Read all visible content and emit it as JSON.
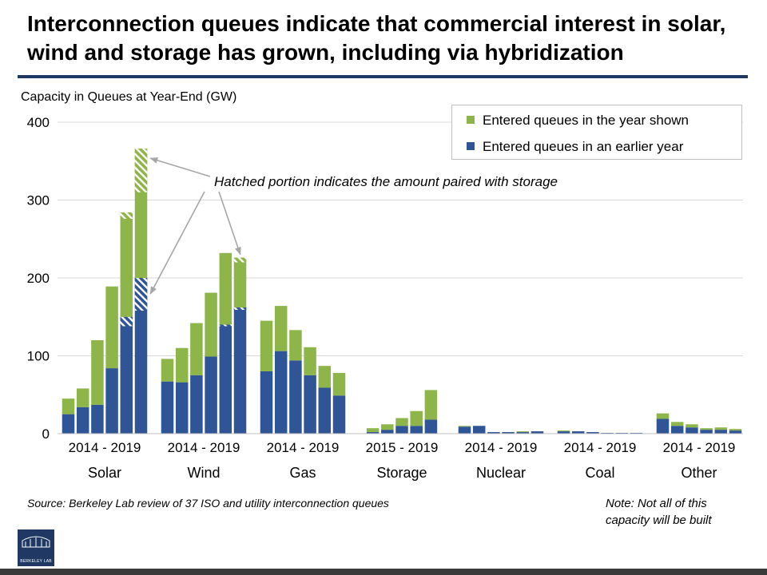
{
  "slide": {
    "title": "Interconnection queues indicate that commercial interest in solar, wind and storage has grown, including via hybridization",
    "source": "Source: Berkeley Lab review of 37 ISO and utility interconnection queues",
    "note": "Note: Not all of this capacity will be built",
    "logo_text": "BERKELEY LAB"
  },
  "colors": {
    "entered_year": "#8db54a",
    "entered_earlier": "#2f5597",
    "title_rule": "#1f3864",
    "annotation_arrow": "#a6a6a6"
  },
  "chart_data": {
    "type": "bar",
    "stacked": true,
    "ylabel": "Capacity in Queues at Year-End (GW)",
    "ylim": [
      0,
      400
    ],
    "yticks": [
      0,
      100,
      200,
      300,
      400
    ],
    "grid": true,
    "legend_position": "top-right",
    "annotation": "Hatched portion indicates the amount paired with storage",
    "groups": [
      {
        "name": "Solar",
        "range": "2014 - 2019",
        "years": [
          2014,
          2015,
          2016,
          2017,
          2018,
          2019
        ],
        "earlier": [
          25,
          34,
          37,
          84,
          150,
          200
        ],
        "entered": [
          20,
          24,
          83,
          105,
          134,
          166
        ],
        "hatched_earlier": [
          0,
          0,
          0,
          0,
          12,
          42
        ],
        "hatched_entered": [
          0,
          0,
          0,
          0,
          8,
          56
        ]
      },
      {
        "name": "Wind",
        "range": "2014 - 2019",
        "years": [
          2014,
          2015,
          2016,
          2017,
          2018,
          2019
        ],
        "earlier": [
          67,
          66,
          75,
          99,
          140,
          162
        ],
        "entered": [
          29,
          44,
          67,
          82,
          92,
          64
        ],
        "hatched_earlier": [
          0,
          0,
          0,
          0,
          2,
          3
        ],
        "hatched_entered": [
          0,
          0,
          0,
          0,
          0,
          6
        ]
      },
      {
        "name": "Gas",
        "range": "2014 - 2019",
        "years": [
          2014,
          2015,
          2016,
          2017,
          2018,
          2019
        ],
        "earlier": [
          80,
          106,
          94,
          75,
          59,
          49
        ],
        "entered": [
          65,
          58,
          39,
          36,
          28,
          29
        ],
        "hatched_earlier": [
          0,
          0,
          0,
          0,
          0,
          0
        ],
        "hatched_entered": [
          0,
          0,
          0,
          0,
          0,
          0
        ]
      },
      {
        "name": "Storage",
        "range": "2015 - 2019",
        "years": [
          2015,
          2016,
          2017,
          2018,
          2019
        ],
        "earlier": [
          2,
          5,
          10,
          10,
          18
        ],
        "entered": [
          5,
          7,
          10,
          19,
          38
        ],
        "hatched_earlier": [
          0,
          0,
          0,
          0,
          0
        ],
        "hatched_entered": [
          0,
          0,
          0,
          0,
          0
        ]
      },
      {
        "name": "Nuclear",
        "range": "2014 - 2019",
        "years": [
          2014,
          2015,
          2016,
          2017,
          2018,
          2019
        ],
        "earlier": [
          9,
          10,
          2,
          2,
          2,
          3
        ],
        "entered": [
          1,
          0,
          0,
          0,
          1,
          0
        ],
        "hatched_earlier": [
          0,
          0,
          0,
          0,
          0,
          0
        ],
        "hatched_entered": [
          0,
          0,
          0,
          0,
          0,
          0
        ]
      },
      {
        "name": "Coal",
        "range": "2014 - 2019",
        "years": [
          2014,
          2015,
          2016,
          2017,
          2018,
          2019
        ],
        "earlier": [
          3,
          3,
          2,
          1,
          1,
          1
        ],
        "entered": [
          1,
          0,
          0,
          0,
          0,
          0
        ],
        "hatched_earlier": [
          0,
          0,
          0,
          0,
          0,
          0
        ],
        "hatched_entered": [
          0,
          0,
          0,
          0,
          0,
          0
        ]
      },
      {
        "name": "Other",
        "range": "2014 - 2019",
        "years": [
          2014,
          2015,
          2016,
          2017,
          2018,
          2019
        ],
        "earlier": [
          19,
          10,
          8,
          5,
          5,
          4
        ],
        "entered": [
          7,
          5,
          4,
          2,
          3,
          2
        ],
        "hatched_earlier": [
          0,
          0,
          0,
          0,
          0,
          0
        ],
        "hatched_entered": [
          0,
          0,
          0,
          0,
          0,
          0
        ]
      }
    ],
    "legend": [
      {
        "label": "Entered queues in the year shown",
        "color_key": "entered_year"
      },
      {
        "label": "Entered queues in an earlier year",
        "color_key": "entered_earlier"
      }
    ]
  }
}
